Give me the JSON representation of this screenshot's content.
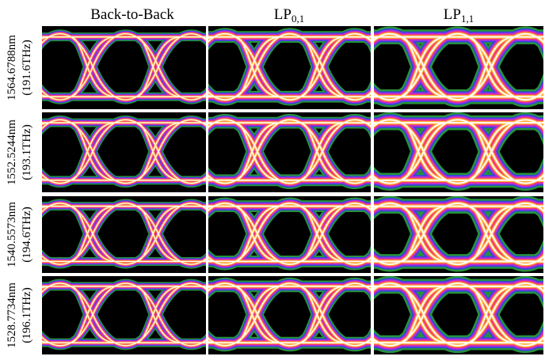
{
  "columns": [
    "Back-to-Back",
    {
      "main": "LP",
      "sub": "0,1"
    },
    {
      "main": "LP",
      "sub": "1,1"
    }
  ],
  "rows": [
    {
      "wavelength": "1564.6788nm",
      "frequency": "(191.6THz)"
    },
    {
      "wavelength": "1552.5244nm",
      "frequency": "(193.1THz)"
    },
    {
      "wavelength": "1540.5573nm",
      "frequency": "(194.6THz)"
    },
    {
      "wavelength": "1528.7734nm",
      "frequency": "(196.1THz)"
    }
  ]
}
